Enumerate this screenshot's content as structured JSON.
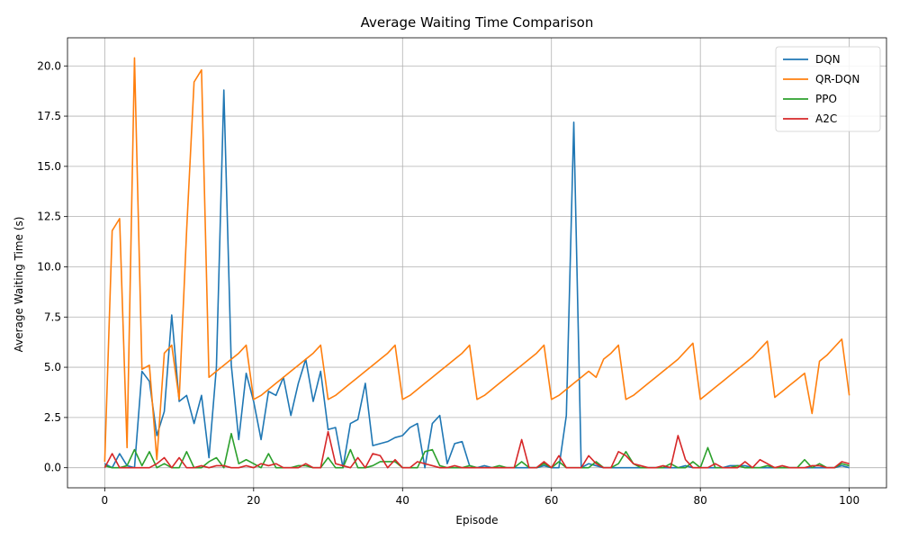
{
  "chart_data": {
    "type": "line",
    "title": "Average Waiting Time Comparison",
    "xlabel": "Episode",
    "ylabel": "Average Waiting Time (s)",
    "xlim": [
      -5,
      105
    ],
    "ylim": [
      -1.0,
      21.4
    ],
    "xticks": [
      0,
      20,
      40,
      60,
      80,
      100
    ],
    "yticks": [
      0.0,
      2.5,
      5.0,
      7.5,
      10.0,
      12.5,
      15.0,
      17.5,
      20.0
    ],
    "ytick_labels": [
      "0.0",
      "2.5",
      "5.0",
      "7.5",
      "10.0",
      "12.5",
      "15.0",
      "17.5",
      "20.0"
    ],
    "grid": true,
    "legend_position": "top-right",
    "series": [
      {
        "name": "DQN",
        "color": "#1f77b4",
        "values": [
          0.2,
          0.0,
          0.7,
          0.1,
          0.0,
          4.8,
          4.3,
          1.6,
          2.8,
          7.6,
          3.3,
          3.6,
          2.2,
          3.6,
          0.5,
          5.0,
          18.8,
          5.1,
          1.4,
          4.7,
          3.3,
          1.4,
          3.8,
          3.6,
          4.5,
          2.6,
          4.2,
          5.4,
          3.3,
          4.8,
          1.9,
          2.0,
          0.0,
          2.2,
          2.4,
          4.2,
          1.1,
          1.2,
          1.3,
          1.5,
          1.6,
          2.0,
          2.2,
          0.0,
          2.2,
          2.6,
          0.2,
          1.2,
          1.3,
          0.1,
          0.0,
          0.1,
          0.0,
          0.0,
          0.0,
          0.0,
          0.0,
          0.0,
          0.0,
          0.1,
          0.0,
          0.0,
          2.6,
          17.2,
          0.0,
          0.2,
          0.1,
          0.0,
          0.0,
          0.0,
          0.0,
          0.0,
          0.0,
          0.0,
          0.0,
          0.0,
          0.0,
          0.0,
          0.1,
          0.0,
          0.0,
          0.0,
          0.0,
          0.0,
          0.1,
          0.1,
          0.1,
          0.0,
          0.0,
          0.0,
          0.0,
          0.0,
          0.0,
          0.0,
          0.0,
          0.0,
          0.0,
          0.0,
          0.0,
          0.1,
          0.0
        ]
      },
      {
        "name": "QR-DQN",
        "color": "#ff7f0e",
        "values": [
          0.3,
          11.8,
          12.4,
          1.0,
          20.4,
          4.9,
          5.1,
          0.4,
          5.7,
          6.1,
          3.4,
          11.8,
          19.2,
          19.8,
          4.5,
          4.8,
          5.1,
          5.4,
          5.7,
          6.1,
          3.4,
          3.6,
          3.9,
          4.2,
          4.5,
          4.8,
          5.1,
          5.4,
          5.7,
          6.1,
          3.4,
          3.6,
          3.9,
          4.2,
          4.5,
          4.8,
          5.1,
          5.4,
          5.7,
          6.1,
          3.4,
          3.6,
          3.9,
          4.2,
          4.5,
          4.8,
          5.1,
          5.4,
          5.7,
          6.1,
          3.4,
          3.6,
          3.9,
          4.2,
          4.5,
          4.8,
          5.1,
          5.4,
          5.7,
          6.1,
          3.4,
          3.6,
          3.9,
          4.2,
          4.5,
          4.8,
          4.5,
          5.4,
          5.7,
          6.1,
          3.4,
          3.6,
          3.9,
          4.2,
          4.5,
          4.8,
          5.1,
          5.4,
          5.8,
          6.2,
          3.4,
          3.7,
          4.0,
          4.3,
          4.6,
          4.9,
          5.2,
          5.5,
          5.9,
          6.3,
          3.5,
          3.8,
          4.1,
          4.4,
          4.7,
          2.7,
          5.3,
          5.6,
          6.0,
          6.4,
          3.6
        ]
      },
      {
        "name": "PPO",
        "color": "#2ca02c",
        "values": [
          0.1,
          0.0,
          0.0,
          0.1,
          0.9,
          0.1,
          0.8,
          0.0,
          0.2,
          0.0,
          0.0,
          0.8,
          0.0,
          0.0,
          0.3,
          0.5,
          0.0,
          1.7,
          0.2,
          0.4,
          0.2,
          0.0,
          0.7,
          0.0,
          0.0,
          0.0,
          0.1,
          0.1,
          0.0,
          0.0,
          0.5,
          0.0,
          0.0,
          0.9,
          0.0,
          0.0,
          0.1,
          0.3,
          0.3,
          0.3,
          0.0,
          0.0,
          0.0,
          0.8,
          0.9,
          0.1,
          0.0,
          0.0,
          0.0,
          0.1,
          0.0,
          0.0,
          0.0,
          0.1,
          0.0,
          0.0,
          0.3,
          0.0,
          0.0,
          0.2,
          0.0,
          0.3,
          0.0,
          0.0,
          0.0,
          0.0,
          0.3,
          0.0,
          0.0,
          0.2,
          0.8,
          0.2,
          0.0,
          0.0,
          0.0,
          0.0,
          0.2,
          0.0,
          0.0,
          0.3,
          0.0,
          1.0,
          0.0,
          0.0,
          0.0,
          0.1,
          0.0,
          0.0,
          0.0,
          0.1,
          0.0,
          0.0,
          0.0,
          0.0,
          0.4,
          0.0,
          0.2,
          0.0,
          0.0,
          0.2,
          0.1
        ]
      },
      {
        "name": "A2C",
        "color": "#d62728",
        "values": [
          0.0,
          0.7,
          0.0,
          0.0,
          0.0,
          0.0,
          0.0,
          0.2,
          0.5,
          0.0,
          0.5,
          0.0,
          0.0,
          0.1,
          0.0,
          0.1,
          0.1,
          0.0,
          0.0,
          0.1,
          0.0,
          0.2,
          0.1,
          0.2,
          0.0,
          0.0,
          0.0,
          0.2,
          0.0,
          0.0,
          1.8,
          0.2,
          0.1,
          0.0,
          0.5,
          0.0,
          0.7,
          0.6,
          0.0,
          0.4,
          0.0,
          0.0,
          0.3,
          0.2,
          0.1,
          0.0,
          0.0,
          0.1,
          0.0,
          0.0,
          0.0,
          0.0,
          0.0,
          0.0,
          0.0,
          0.0,
          1.4,
          0.0,
          0.0,
          0.3,
          0.0,
          0.6,
          0.0,
          0.0,
          0.0,
          0.6,
          0.2,
          0.0,
          0.0,
          0.8,
          0.6,
          0.2,
          0.1,
          0.0,
          0.0,
          0.1,
          0.0,
          1.6,
          0.4,
          0.0,
          0.0,
          0.0,
          0.2,
          0.0,
          0.0,
          0.0,
          0.3,
          0.0,
          0.4,
          0.2,
          0.0,
          0.1,
          0.0,
          0.0,
          0.0,
          0.1,
          0.1,
          0.0,
          0.0,
          0.3,
          0.2
        ]
      }
    ]
  }
}
